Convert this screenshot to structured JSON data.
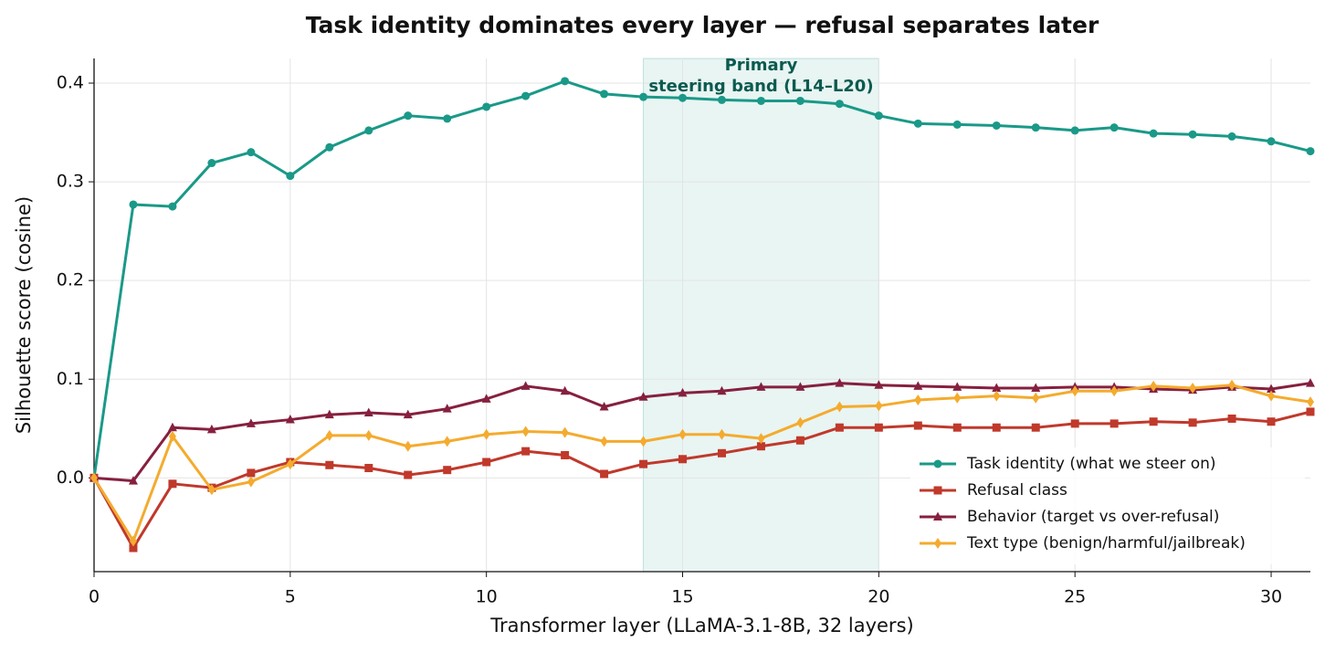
{
  "chart_data": {
    "type": "line",
    "title": "Task identity dominates every layer — refusal separates later",
    "x_label": "Transformer layer (LLaMA-3.1-8B, 32 layers)",
    "y_label": "Silhouette score (cosine)",
    "x": [
      0,
      1,
      2,
      3,
      4,
      5,
      6,
      7,
      8,
      9,
      10,
      11,
      12,
      13,
      14,
      15,
      16,
      17,
      18,
      19,
      20,
      21,
      22,
      23,
      24,
      25,
      26,
      27,
      28,
      29,
      30,
      31
    ],
    "series": [
      {
        "name": "Task identity (what we steer on)",
        "color": "#1a9988",
        "marker": "circle",
        "values": [
          0.0,
          0.277,
          0.275,
          0.319,
          0.33,
          0.306,
          0.335,
          0.352,
          0.367,
          0.364,
          0.376,
          0.387,
          0.402,
          0.389,
          0.386,
          0.385,
          0.383,
          0.382,
          0.382,
          0.379,
          0.367,
          0.359,
          0.358,
          0.357,
          0.355,
          0.352,
          0.355,
          0.349,
          0.348,
          0.346,
          0.341,
          0.331
        ]
      },
      {
        "name": "Refusal class",
        "color": "#c0392b",
        "marker": "square",
        "values": [
          0.0,
          -0.071,
          -0.006,
          -0.01,
          0.005,
          0.016,
          0.013,
          0.01,
          0.003,
          0.008,
          0.016,
          0.027,
          0.023,
          0.004,
          0.014,
          0.019,
          0.025,
          0.032,
          0.038,
          0.051,
          0.051,
          0.053,
          0.051,
          0.051,
          0.051,
          0.055,
          0.055,
          0.057,
          0.056,
          0.06,
          0.057,
          0.067
        ]
      },
      {
        "name": "Behavior (target vs over-refusal)",
        "color": "#86203f",
        "marker": "triangle",
        "values": [
          0.0,
          -0.003,
          0.051,
          0.049,
          0.055,
          0.059,
          0.064,
          0.066,
          0.064,
          0.07,
          0.08,
          0.093,
          0.088,
          0.072,
          0.082,
          0.086,
          0.088,
          0.092,
          0.092,
          0.096,
          0.094,
          0.093,
          0.092,
          0.091,
          0.091,
          0.092,
          0.092,
          0.09,
          0.089,
          0.092,
          0.09,
          0.096
        ]
      },
      {
        "name": "Text type (benign/harmful/jailbreak)",
        "color": "#f4ab2e",
        "marker": "diamond",
        "values": [
          0.0,
          -0.064,
          0.042,
          -0.012,
          -0.004,
          0.014,
          0.043,
          0.043,
          0.032,
          0.037,
          0.044,
          0.047,
          0.046,
          0.037,
          0.037,
          0.044,
          0.044,
          0.04,
          0.056,
          0.072,
          0.073,
          0.079,
          0.081,
          0.083,
          0.081,
          0.088,
          0.088,
          0.093,
          0.091,
          0.094,
          0.083,
          0.077
        ]
      }
    ],
    "band": [
      14,
      20
    ],
    "band_color": "#1a9988",
    "annotation": [
      "Primary",
      "steering band (L14–L20)"
    ],
    "xlim": [
      0,
      31
    ],
    "xticks": [
      0,
      5,
      10,
      15,
      20,
      25,
      30
    ],
    "ylim": [
      -0.095,
      0.425
    ],
    "yticks": [
      {
        "value": 0,
        "label": "0.0"
      },
      0.1,
      0.2,
      0.3,
      0.4
    ],
    "grid": true,
    "legend": "lower right"
  }
}
